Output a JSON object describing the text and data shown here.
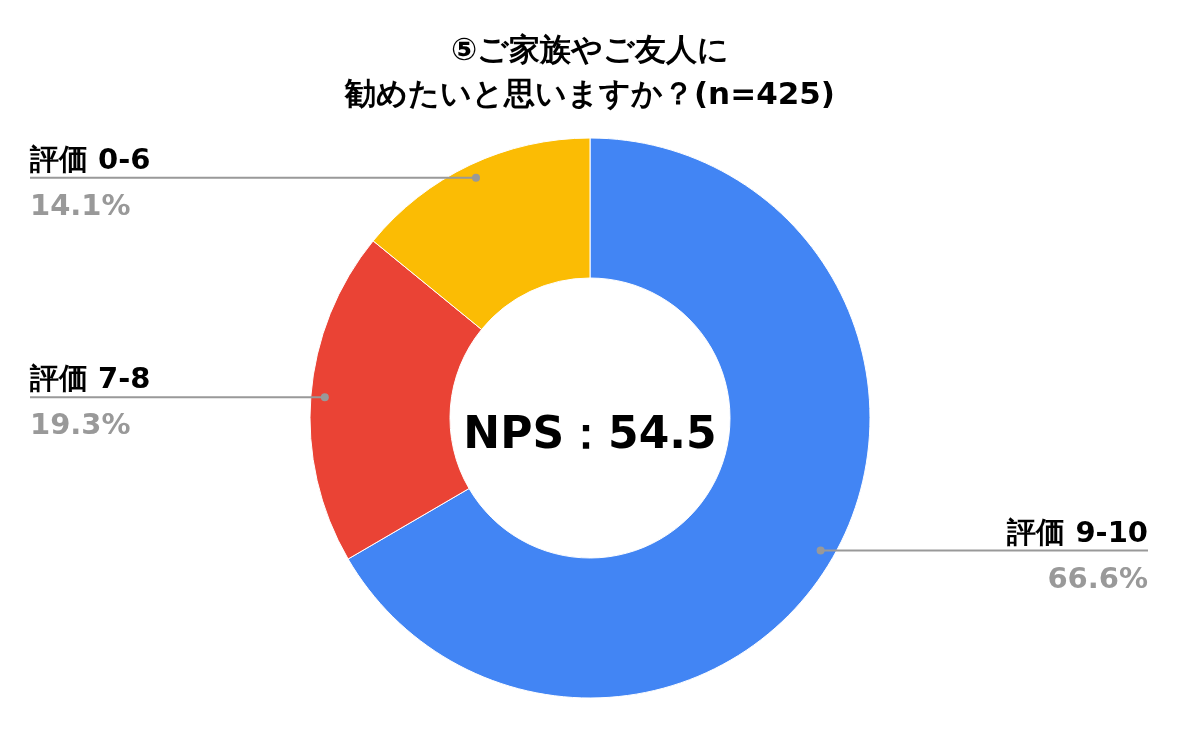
{
  "chart_data": {
    "type": "donut",
    "title": "⑤ご家族やご友人に",
    "subtitle": "勧めたいと思いますか？(n=425)",
    "categories": [
      "評価 9-10",
      "評価 7-8",
      "評価 0-6"
    ],
    "values": [
      66.6,
      19.3,
      14.1
    ],
    "value_labels": [
      "66.6%",
      "19.3%",
      "14.1%"
    ],
    "colors": [
      "#4285f4",
      "#ea4335",
      "#fbbc04"
    ],
    "annotations": [
      "NPS：54.5"
    ]
  }
}
